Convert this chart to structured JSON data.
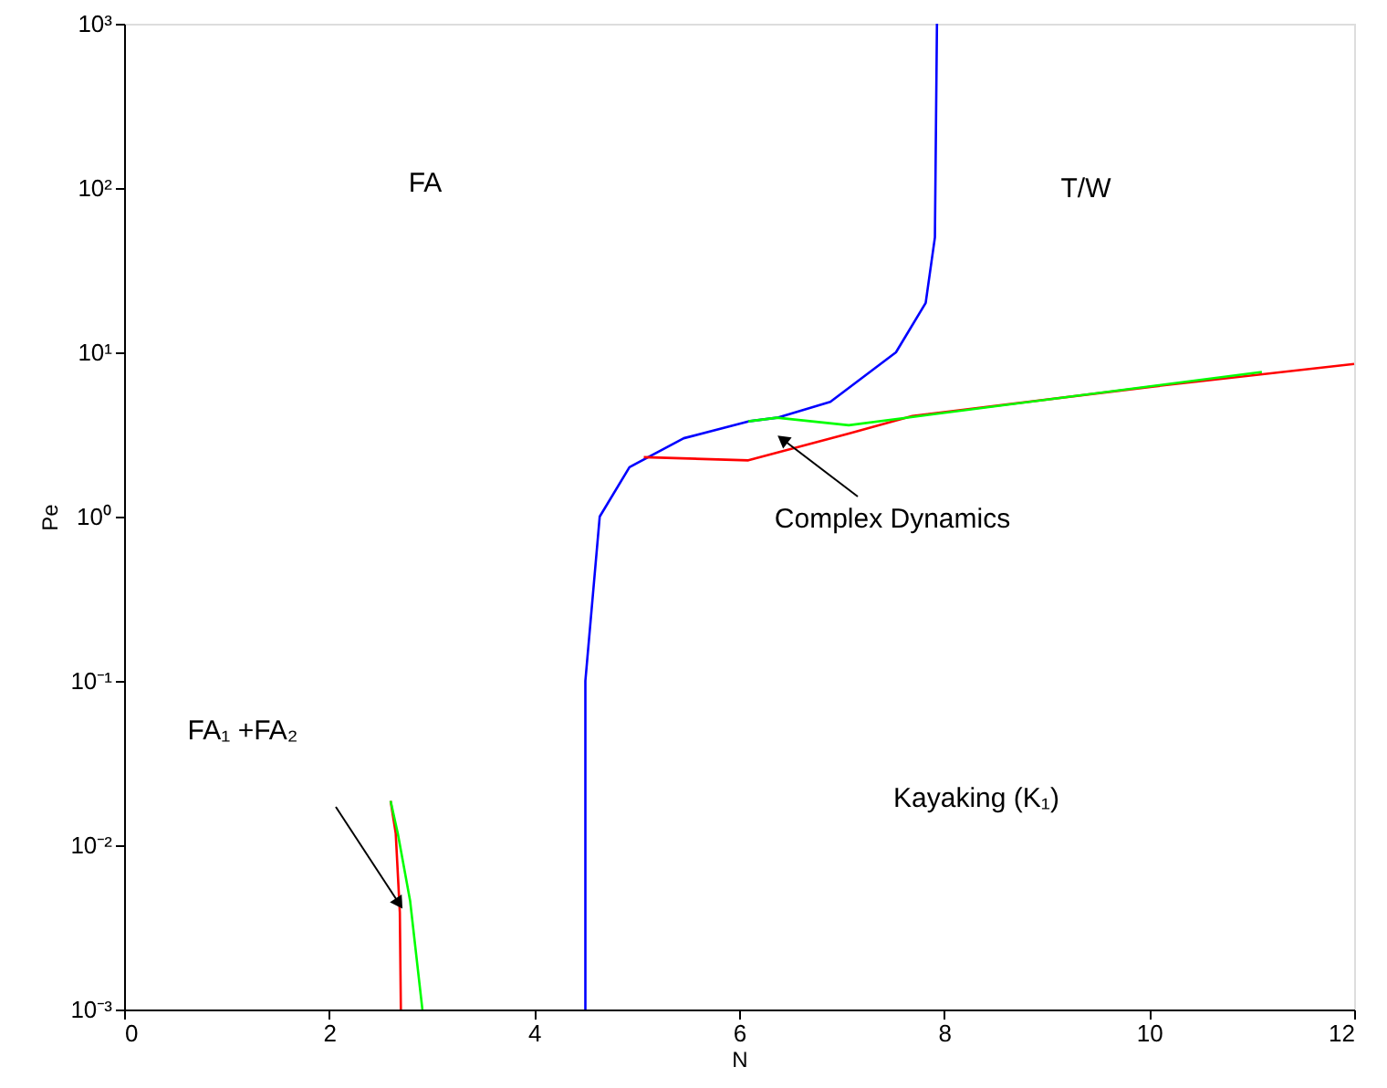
{
  "chart_data": {
    "type": "line",
    "xlabel": "N",
    "ylabel": "Pe",
    "log": "y",
    "grid": false,
    "marker": "none",
    "line_style": "solid",
    "xlim": [
      0,
      12
    ],
    "xticks": [
      {
        "value": 0,
        "label": "0"
      },
      {
        "value": 2,
        "label": "2"
      },
      {
        "value": 4,
        "label": "4"
      },
      {
        "value": 6,
        "label": "6"
      },
      {
        "value": 8,
        "label": "8"
      },
      {
        "value": 10,
        "label": "10"
      },
      {
        "value": 12,
        "label": "12"
      }
    ],
    "ylim": [
      0.001,
      1000
    ],
    "yticks": [
      {
        "value": 0.001,
        "label": "10⁻³"
      },
      {
        "value": 0.01,
        "label": "10⁻²"
      },
      {
        "value": 0.1,
        "label": "10⁻¹"
      },
      {
        "value": 1,
        "label": "10⁰"
      },
      {
        "value": 10,
        "label": "10¹"
      },
      {
        "value": 100,
        "label": "10²"
      },
      {
        "value": 1000,
        "label": "10³"
      }
    ],
    "series": [
      {
        "color": "#0000ff",
        "x": [
          4.5,
          4.5,
          4.5,
          4.64,
          4.93,
          5.46,
          6.09,
          6.37,
          6.89,
          7.53,
          7.82,
          7.91,
          7.93
        ],
        "values": [
          0.001,
          0.01,
          0.1,
          1,
          2,
          3,
          3.8,
          4.0,
          5.0,
          10,
          20,
          50,
          1000
        ]
      },
      {
        "color": "#ff0000",
        "x": [
          5.07,
          6.09,
          7.07,
          7.69,
          10.05,
          12
        ],
        "values": [
          2.3,
          2.2,
          3.2,
          4.1,
          6.2,
          8.5
        ]
      },
      {
        "color": "#00ff00",
        "x": [
          6.09,
          6.37,
          7.07,
          11.1
        ],
        "values": [
          3.8,
          4.0,
          3.6,
          7.6
        ]
      },
      {
        "color": "#ff0000",
        "x": [
          2.6,
          2.65,
          2.69,
          2.7
        ],
        "values": [
          0.0186,
          0.0118,
          0.0039,
          0.001
        ]
      },
      {
        "color": "#00ff00",
        "x": [
          2.6,
          2.67,
          2.79,
          2.91
        ],
        "values": [
          0.0186,
          0.0118,
          0.0046,
          0.001
        ]
      }
    ],
    "annotations": [
      "FA",
      "T/W",
      "Complex Dynamics",
      "FA₁ +FA₂",
      "Kayaking (K₁)"
    ]
  }
}
